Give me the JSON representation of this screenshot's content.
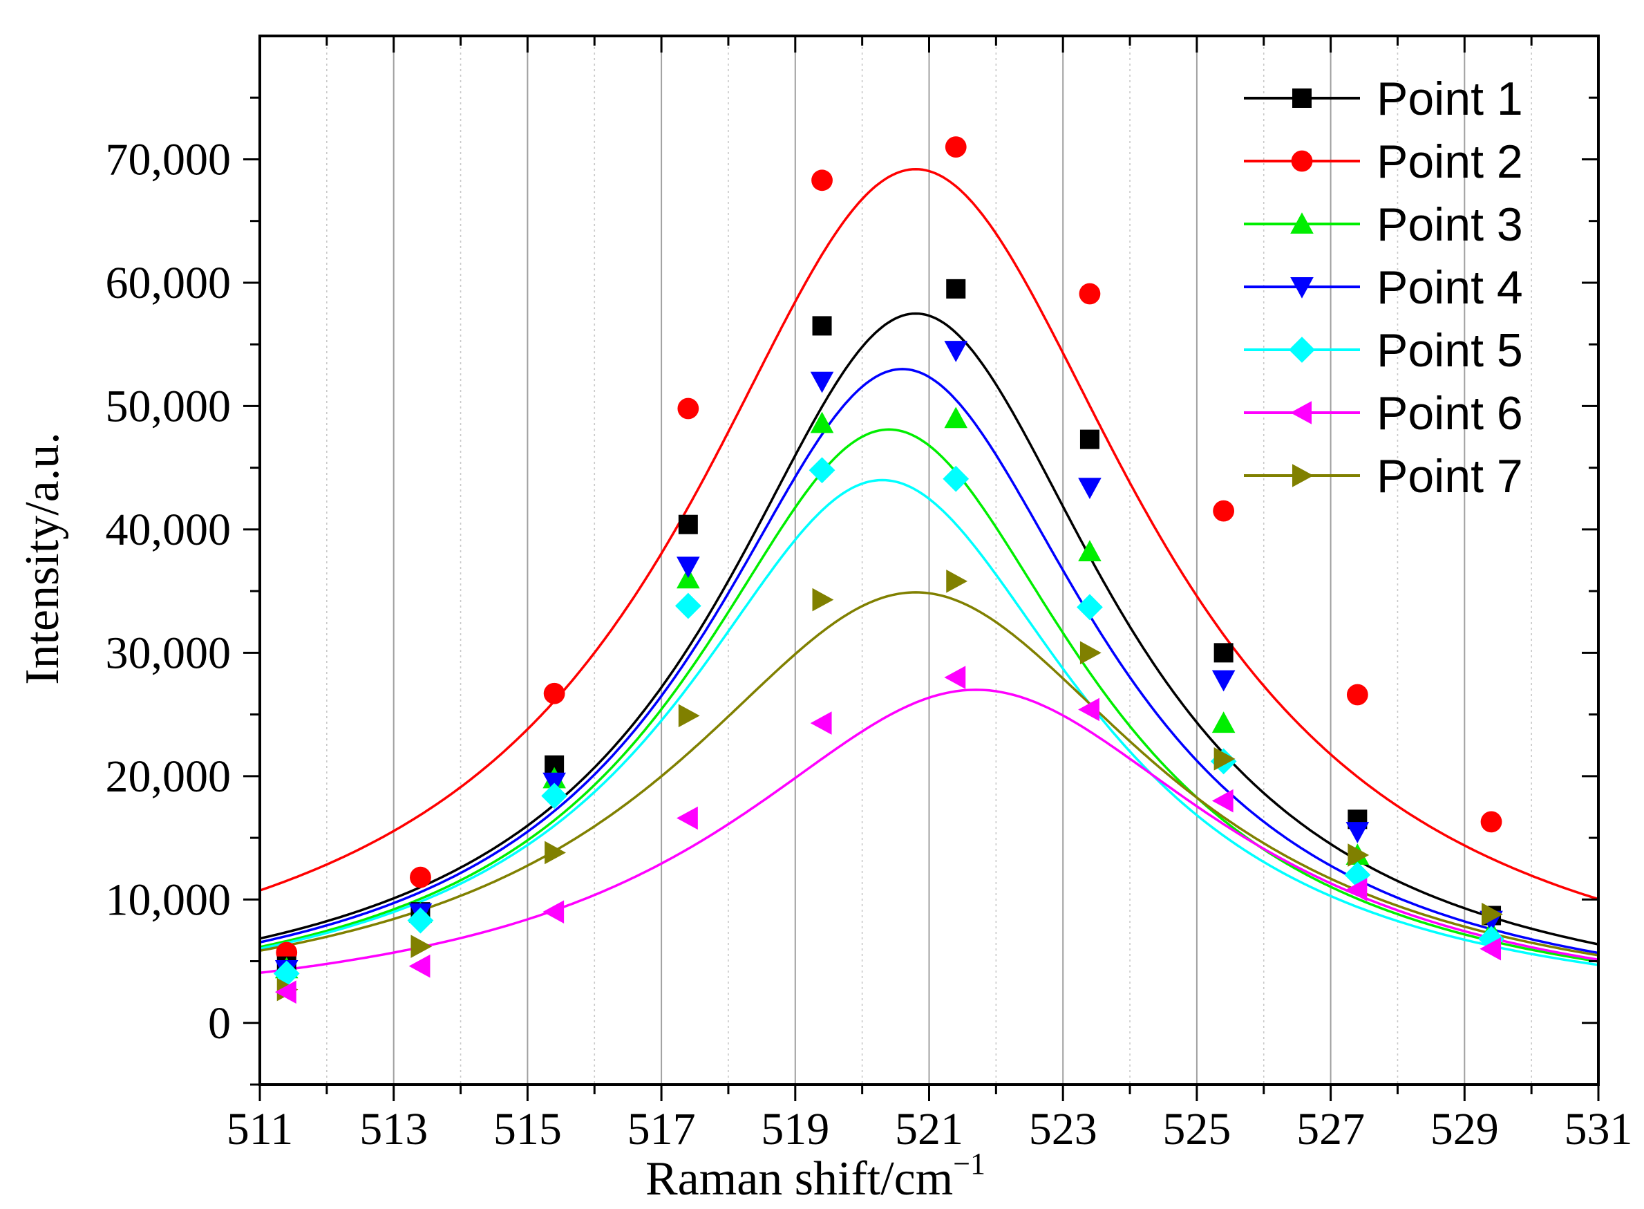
{
  "chart_data": {
    "type": "scatter",
    "title": "",
    "xlabel": "Raman shift/cm",
    "xlabel_superscript": "−1",
    "ylabel": "Intensity/a.u.",
    "xlim": [
      511,
      531
    ],
    "ylim": [
      -5000,
      80000
    ],
    "x_ticks": [
      511,
      513,
      515,
      517,
      519,
      521,
      523,
      525,
      527,
      529,
      531
    ],
    "x_tick_labels": [
      "511",
      "513",
      "515",
      "517",
      "519",
      "521",
      "523",
      "525",
      "527",
      "529",
      "531"
    ],
    "y_ticks": [
      0,
      10000,
      20000,
      30000,
      40000,
      50000,
      60000,
      70000
    ],
    "y_tick_labels": [
      "0",
      "10,000",
      "20,000",
      "30,000",
      "40,000",
      "50,000",
      "60,000",
      "70,000"
    ],
    "grid": "vertical",
    "legend_position": "top-right",
    "x": [
      511.4,
      513.4,
      515.4,
      517.4,
      519.4,
      521.4,
      523.4,
      525.4,
      527.4,
      529.4
    ],
    "series": [
      {
        "name": "Point 1",
        "color": "#000000",
        "marker": "square",
        "values": [
          4600,
          9000,
          20900,
          40400,
          56500,
          59500,
          47300,
          30000,
          16500,
          8700
        ],
        "fit": {
          "peak": 57500,
          "center": 520.8,
          "width": 3.6,
          "baseline": 0
        }
      },
      {
        "name": "Point 2",
        "color": "#ff0000",
        "marker": "circle",
        "values": [
          5700,
          11800,
          26700,
          49800,
          68300,
          71000,
          59100,
          41500,
          26600,
          16300
        ],
        "fit": {
          "peak": 69200,
          "center": 520.8,
          "width": 4.2,
          "baseline": 0
        }
      },
      {
        "name": "Point 3",
        "color": "#00ee00",
        "marker": "triangle-up",
        "values": [
          4400,
          8900,
          19800,
          36000,
          48600,
          49000,
          38200,
          24300,
          13600,
          7400
        ],
        "fit": {
          "peak": 48100,
          "center": 520.4,
          "width": 3.6,
          "baseline": 0
        }
      },
      {
        "name": "Point 4",
        "color": "#0000ff",
        "marker": "triangle-down",
        "values": [
          4300,
          8900,
          19500,
          37000,
          52000,
          54500,
          43400,
          27800,
          15500,
          8300
        ],
        "fit": {
          "peak": 53000,
          "center": 520.6,
          "width": 3.6,
          "baseline": 0
        }
      },
      {
        "name": "Point 5",
        "color": "#00ffff",
        "marker": "diamond",
        "values": [
          4000,
          8300,
          18400,
          33800,
          44800,
          44100,
          33700,
          21200,
          12000,
          6800
        ],
        "fit": {
          "peak": 44000,
          "center": 520.3,
          "width": 3.7,
          "baseline": 0
        }
      },
      {
        "name": "Point 6",
        "color": "#ff00ff",
        "marker": "triangle-left",
        "values": [
          2500,
          4600,
          9000,
          16600,
          24300,
          28000,
          25400,
          18000,
          10800,
          6000
        ],
        "fit": {
          "peak": 27000,
          "center": 521.7,
          "width": 4.5,
          "baseline": 0
        }
      },
      {
        "name": "Point 7",
        "color": "#808000",
        "marker": "triangle-right",
        "values": [
          2700,
          6200,
          13800,
          24900,
          34300,
          35800,
          30000,
          21400,
          13600,
          8800
        ],
        "fit": {
          "peak": 34900,
          "center": 520.8,
          "width": 4.4,
          "baseline": 0
        }
      }
    ]
  }
}
